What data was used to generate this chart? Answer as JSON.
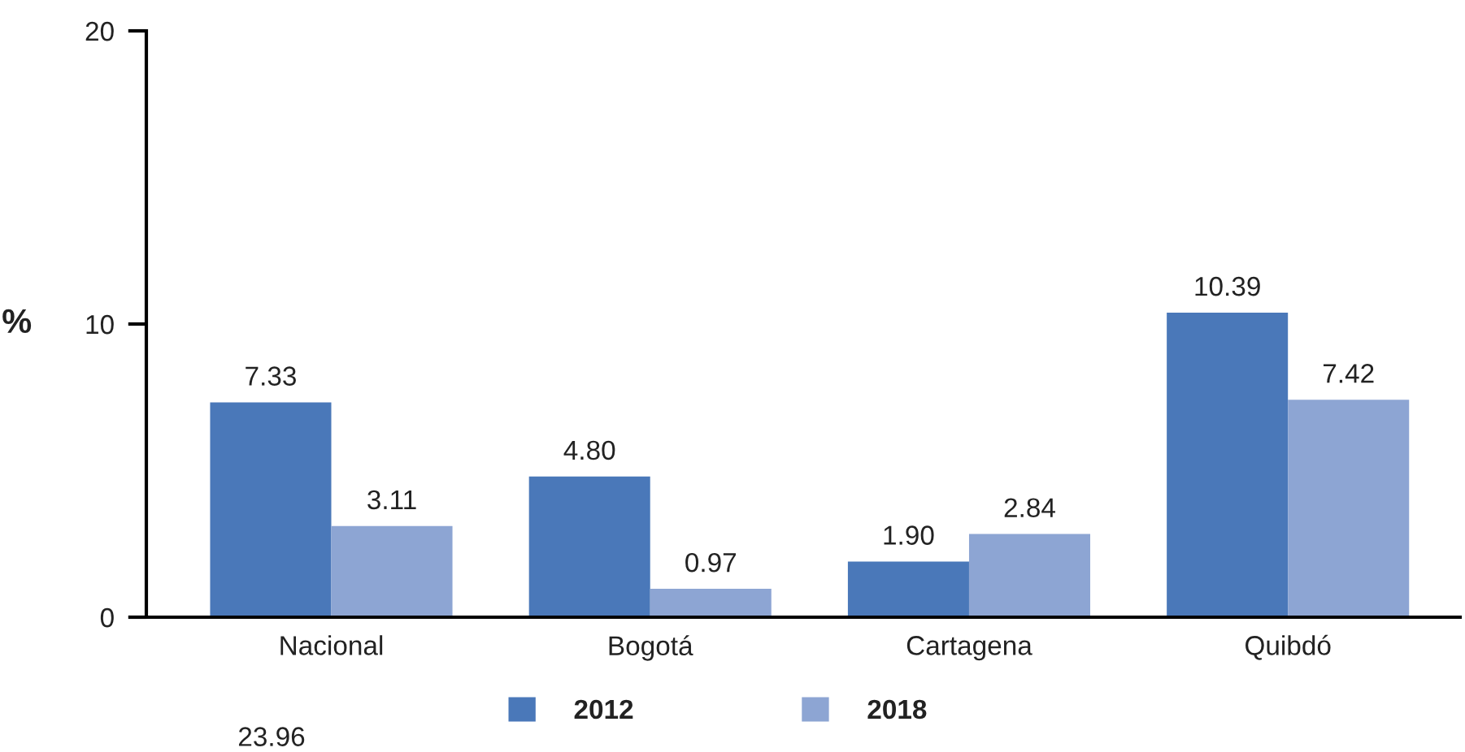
{
  "chart_data": {
    "type": "bar",
    "categories": [
      "Nacional",
      "Bogotá",
      "Cartagena",
      "Quibdó"
    ],
    "series": [
      {
        "name": "2012",
        "color": "#4a78b9",
        "values": [
          7.33,
          4.8,
          1.9,
          10.39
        ],
        "value_labels": [
          "7.33",
          "4.80",
          "1.90",
          "10.39"
        ]
      },
      {
        "name": "2018",
        "color": "#8da5d3",
        "values": [
          3.11,
          0.97,
          2.84,
          7.42
        ],
        "value_labels": [
          "3.11",
          "0.97",
          "2.84",
          "7.42"
        ]
      }
    ],
    "ylabel": "%",
    "ylim": [
      0,
      20
    ],
    "yticks": [
      0,
      10,
      20
    ],
    "grid": false,
    "legend": "bottom",
    "annotations": [
      "23.96"
    ]
  }
}
